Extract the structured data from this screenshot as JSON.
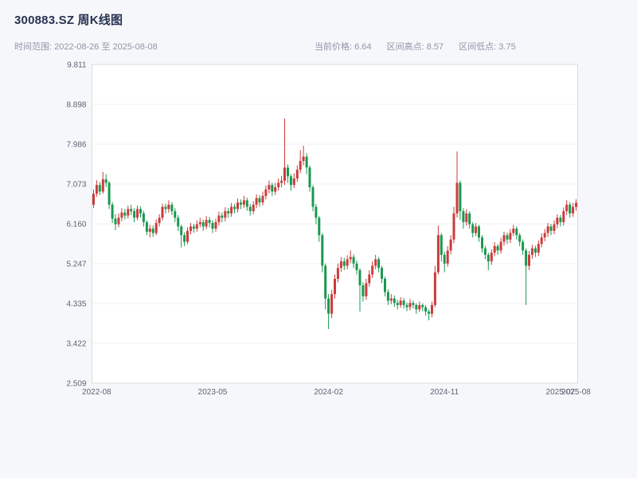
{
  "header": {
    "title": "300883.SZ 周K线图",
    "range_label": "时间范围: 2022-08-26 至 2025-08-08",
    "stats": [
      "当前价格: 6.64",
      "区间高点: 8.57",
      "区间低点: 3.75"
    ]
  },
  "chart_data": {
    "type": "candlestick",
    "symbol": "300883.SZ",
    "period": "weekly",
    "title": "300883.SZ 周K线图",
    "date_start": "2022-08-26",
    "date_end": "2025-08-08",
    "current_price": 6.64,
    "range_high": 8.57,
    "range_low": 3.75,
    "ylim": [
      2.509,
      9.811
    ],
    "y_ticks": [
      9.811,
      8.898,
      7.986,
      7.073,
      6.16,
      5.247,
      4.335,
      3.422,
      2.509
    ],
    "x_ticks": [
      {
        "label": "2022-08",
        "index": 1
      },
      {
        "label": "2023-05",
        "index": 38
      },
      {
        "label": "2024-02",
        "index": 75
      },
      {
        "label": "2024-11",
        "index": 112
      },
      {
        "label": "2025-07",
        "index": 149
      },
      {
        "label": "2025-08",
        "index": 154
      }
    ],
    "grid": "horizontal",
    "legend": "none",
    "up_color": "#cc3b3b",
    "down_color": "#1a9850",
    "candles": [
      [
        6.6,
        6.95,
        6.52,
        6.85
      ],
      [
        6.85,
        7.16,
        6.78,
        7.05
      ],
      [
        7.05,
        7.12,
        6.82,
        6.9
      ],
      [
        6.9,
        7.35,
        6.85,
        7.18
      ],
      [
        7.18,
        7.3,
        7.0,
        7.1
      ],
      [
        7.1,
        7.14,
        6.5,
        6.6
      ],
      [
        6.6,
        6.66,
        6.18,
        6.28
      ],
      [
        6.28,
        6.38,
        6.02,
        6.15
      ],
      [
        6.15,
        6.4,
        6.08,
        6.3
      ],
      [
        6.3,
        6.52,
        6.22,
        6.42
      ],
      [
        6.42,
        6.5,
        6.26,
        6.35
      ],
      [
        6.35,
        6.58,
        6.28,
        6.5
      ],
      [
        6.5,
        6.6,
        6.36,
        6.45
      ],
      [
        6.45,
        6.52,
        6.2,
        6.3
      ],
      [
        6.3,
        6.58,
        6.24,
        6.5
      ],
      [
        6.5,
        6.56,
        6.3,
        6.4
      ],
      [
        6.4,
        6.46,
        6.1,
        6.2
      ],
      [
        6.2,
        6.24,
        5.9,
        5.98
      ],
      [
        5.98,
        6.14,
        5.85,
        6.05
      ],
      [
        6.05,
        6.12,
        5.86,
        5.95
      ],
      [
        5.95,
        6.26,
        5.9,
        6.18
      ],
      [
        6.18,
        6.38,
        6.1,
        6.3
      ],
      [
        6.3,
        6.62,
        6.24,
        6.55
      ],
      [
        6.55,
        6.62,
        6.4,
        6.5
      ],
      [
        6.5,
        6.7,
        6.42,
        6.6
      ],
      [
        6.6,
        6.66,
        6.36,
        6.45
      ],
      [
        6.45,
        6.52,
        6.2,
        6.3
      ],
      [
        6.3,
        6.36,
        6.0,
        6.1
      ],
      [
        6.1,
        6.14,
        5.62,
        5.9
      ],
      [
        5.9,
        5.96,
        5.65,
        5.75
      ],
      [
        5.75,
        6.08,
        5.7,
        6.0
      ],
      [
        6.0,
        6.18,
        5.92,
        6.1
      ],
      [
        6.1,
        6.16,
        5.96,
        6.05
      ],
      [
        6.05,
        6.24,
        5.98,
        6.15
      ],
      [
        6.15,
        6.3,
        6.08,
        6.2
      ],
      [
        6.2,
        6.26,
        6.0,
        6.1
      ],
      [
        6.1,
        6.34,
        6.04,
        6.25
      ],
      [
        6.25,
        6.32,
        6.08,
        6.18
      ],
      [
        6.18,
        6.24,
        5.95,
        6.05
      ],
      [
        6.05,
        6.28,
        5.98,
        6.2
      ],
      [
        6.2,
        6.44,
        6.12,
        6.35
      ],
      [
        6.35,
        6.42,
        6.2,
        6.3
      ],
      [
        6.3,
        6.54,
        6.22,
        6.45
      ],
      [
        6.45,
        6.52,
        6.3,
        6.4
      ],
      [
        6.4,
        6.64,
        6.32,
        6.55
      ],
      [
        6.55,
        6.62,
        6.4,
        6.5
      ],
      [
        6.5,
        6.74,
        6.42,
        6.65
      ],
      [
        6.65,
        6.72,
        6.5,
        6.6
      ],
      [
        6.6,
        6.8,
        6.52,
        6.7
      ],
      [
        6.7,
        6.76,
        6.46,
        6.55
      ],
      [
        6.55,
        6.62,
        6.35,
        6.45
      ],
      [
        6.45,
        6.68,
        6.38,
        6.6
      ],
      [
        6.6,
        6.84,
        6.52,
        6.75
      ],
      [
        6.75,
        6.82,
        6.55,
        6.65
      ],
      [
        6.65,
        6.9,
        6.58,
        6.8
      ],
      [
        6.8,
        7.04,
        6.72,
        6.95
      ],
      [
        6.95,
        7.15,
        6.86,
        7.05
      ],
      [
        7.05,
        7.1,
        6.8,
        6.9
      ],
      [
        6.9,
        7.1,
        6.82,
        7.0
      ],
      [
        7.0,
        7.2,
        6.92,
        7.1
      ],
      [
        7.1,
        7.26,
        7.0,
        7.15
      ],
      [
        7.15,
        8.57,
        7.05,
        7.45
      ],
      [
        7.45,
        7.52,
        7.1,
        7.25
      ],
      [
        7.25,
        7.3,
        6.92,
        7.05
      ],
      [
        7.05,
        7.32,
        6.98,
        7.2
      ],
      [
        7.2,
        7.5,
        7.12,
        7.4
      ],
      [
        7.4,
        7.85,
        7.32,
        7.6
      ],
      [
        7.6,
        7.95,
        7.5,
        7.7
      ],
      [
        7.7,
        7.78,
        7.3,
        7.45
      ],
      [
        7.45,
        7.5,
        6.9,
        7.0
      ],
      [
        7.0,
        7.05,
        6.45,
        6.55
      ],
      [
        6.55,
        6.62,
        6.15,
        6.3
      ],
      [
        6.3,
        6.34,
        5.75,
        5.9
      ],
      [
        5.9,
        5.95,
        5.05,
        5.2
      ],
      [
        5.2,
        5.25,
        4.2,
        4.45
      ],
      [
        4.45,
        4.55,
        3.75,
        4.1
      ],
      [
        4.1,
        4.65,
        4.0,
        4.55
      ],
      [
        4.55,
        5.0,
        4.45,
        4.9
      ],
      [
        4.9,
        5.25,
        4.82,
        5.15
      ],
      [
        5.15,
        5.4,
        5.06,
        5.3
      ],
      [
        5.3,
        5.38,
        5.1,
        5.2
      ],
      [
        5.2,
        5.44,
        5.12,
        5.35
      ],
      [
        5.35,
        5.55,
        5.26,
        5.4
      ],
      [
        5.4,
        5.46,
        5.15,
        5.25
      ],
      [
        5.25,
        5.32,
        5.0,
        5.1
      ],
      [
        5.1,
        5.14,
        4.15,
        4.75
      ],
      [
        4.75,
        4.82,
        4.38,
        4.5
      ],
      [
        4.5,
        4.9,
        4.42,
        4.8
      ],
      [
        4.8,
        5.1,
        4.72,
        5.0
      ],
      [
        5.0,
        5.3,
        4.92,
        5.2
      ],
      [
        5.2,
        5.45,
        5.12,
        5.35
      ],
      [
        5.35,
        5.4,
        5.05,
        5.15
      ],
      [
        5.15,
        5.2,
        4.8,
        4.9
      ],
      [
        4.9,
        4.95,
        4.5,
        4.6
      ],
      [
        4.6,
        4.66,
        4.3,
        4.4
      ],
      [
        4.4,
        4.55,
        4.32,
        4.45
      ],
      [
        4.45,
        4.52,
        4.26,
        4.35
      ],
      [
        4.35,
        4.42,
        4.2,
        4.3
      ],
      [
        4.3,
        4.48,
        4.24,
        4.4
      ],
      [
        4.4,
        4.46,
        4.22,
        4.3
      ],
      [
        4.3,
        4.36,
        4.16,
        4.25
      ],
      [
        4.25,
        4.44,
        4.18,
        4.35
      ],
      [
        4.35,
        4.4,
        4.22,
        4.3
      ],
      [
        4.3,
        4.34,
        4.1,
        4.2
      ],
      [
        4.2,
        4.38,
        4.14,
        4.3
      ],
      [
        4.3,
        4.34,
        4.16,
        4.25
      ],
      [
        4.25,
        4.3,
        4.06,
        4.15
      ],
      [
        4.15,
        4.2,
        3.95,
        4.1
      ],
      [
        4.1,
        4.38,
        4.02,
        4.3
      ],
      [
        4.3,
        5.2,
        4.25,
        5.05
      ],
      [
        5.05,
        6.12,
        5.0,
        5.9
      ],
      [
        5.9,
        5.95,
        5.3,
        5.45
      ],
      [
        5.45,
        5.52,
        5.05,
        5.25
      ],
      [
        5.25,
        5.65,
        5.18,
        5.55
      ],
      [
        5.55,
        5.9,
        5.46,
        5.8
      ],
      [
        5.8,
        6.55,
        5.72,
        6.4
      ],
      [
        6.4,
        7.82,
        6.3,
        7.1
      ],
      [
        7.1,
        7.15,
        6.25,
        6.45
      ],
      [
        6.45,
        6.52,
        6.05,
        6.2
      ],
      [
        6.2,
        6.5,
        6.12,
        6.4
      ],
      [
        6.4,
        6.45,
        6.05,
        6.15
      ],
      [
        6.15,
        6.2,
        5.85,
        5.95
      ],
      [
        5.95,
        6.18,
        5.88,
        6.1
      ],
      [
        6.1,
        6.14,
        5.75,
        5.85
      ],
      [
        5.85,
        5.9,
        5.5,
        5.6
      ],
      [
        5.6,
        5.66,
        5.35,
        5.45
      ],
      [
        5.45,
        5.5,
        5.1,
        5.3
      ],
      [
        5.3,
        5.58,
        5.22,
        5.5
      ],
      [
        5.5,
        5.74,
        5.42,
        5.65
      ],
      [
        5.65,
        5.7,
        5.45,
        5.55
      ],
      [
        5.55,
        5.84,
        5.48,
        5.75
      ],
      [
        5.75,
        5.98,
        5.66,
        5.9
      ],
      [
        5.9,
        5.96,
        5.7,
        5.8
      ],
      [
        5.8,
        6.04,
        5.72,
        5.95
      ],
      [
        5.95,
        6.14,
        5.88,
        6.05
      ],
      [
        6.05,
        6.1,
        5.8,
        5.9
      ],
      [
        5.9,
        5.95,
        5.65,
        5.75
      ],
      [
        5.75,
        5.8,
        5.45,
        5.55
      ],
      [
        5.55,
        5.6,
        4.3,
        5.2
      ],
      [
        5.2,
        5.54,
        5.1,
        5.45
      ],
      [
        5.45,
        5.68,
        5.36,
        5.6
      ],
      [
        5.6,
        5.66,
        5.4,
        5.5
      ],
      [
        5.5,
        5.78,
        5.42,
        5.7
      ],
      [
        5.7,
        5.94,
        5.62,
        5.85
      ],
      [
        5.85,
        6.04,
        5.76,
        5.95
      ],
      [
        5.95,
        6.18,
        5.86,
        6.1
      ],
      [
        6.1,
        6.16,
        5.9,
        6.0
      ],
      [
        6.0,
        6.24,
        5.92,
        6.15
      ],
      [
        6.15,
        6.38,
        6.06,
        6.3
      ],
      [
        6.3,
        6.36,
        6.1,
        6.2
      ],
      [
        6.2,
        6.54,
        6.12,
        6.45
      ],
      [
        6.45,
        6.7,
        6.36,
        6.6
      ],
      [
        6.6,
        6.66,
        6.3,
        6.4
      ],
      [
        6.4,
        6.64,
        6.32,
        6.55
      ],
      [
        6.55,
        6.72,
        6.46,
        6.64
      ]
    ]
  }
}
